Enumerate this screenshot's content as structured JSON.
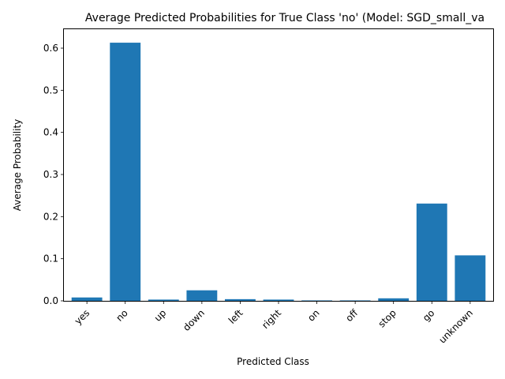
{
  "chart_data": {
    "type": "bar",
    "title": "Average Predicted Probabilities for True Class 'no' (Model: SGD_small_va",
    "xlabel": "Predicted Class",
    "ylabel": "Average Probability",
    "categories": [
      "yes",
      "no",
      "up",
      "down",
      "left",
      "right",
      "on",
      "off",
      "stop",
      "go",
      "unknown"
    ],
    "values": [
      0.008,
      0.613,
      0.003,
      0.025,
      0.004,
      0.003,
      0.001,
      0.001,
      0.006,
      0.231,
      0.108
    ],
    "ylim": [
      0,
      0.645
    ],
    "yticks": [
      0.0,
      0.1,
      0.2,
      0.3,
      0.4,
      0.5,
      0.6
    ],
    "ytick_labels": [
      "0.0",
      "0.1",
      "0.2",
      "0.3",
      "0.4",
      "0.5",
      "0.6"
    ],
    "bar_color": "#1f77b4",
    "grid": false,
    "legend": "none"
  }
}
